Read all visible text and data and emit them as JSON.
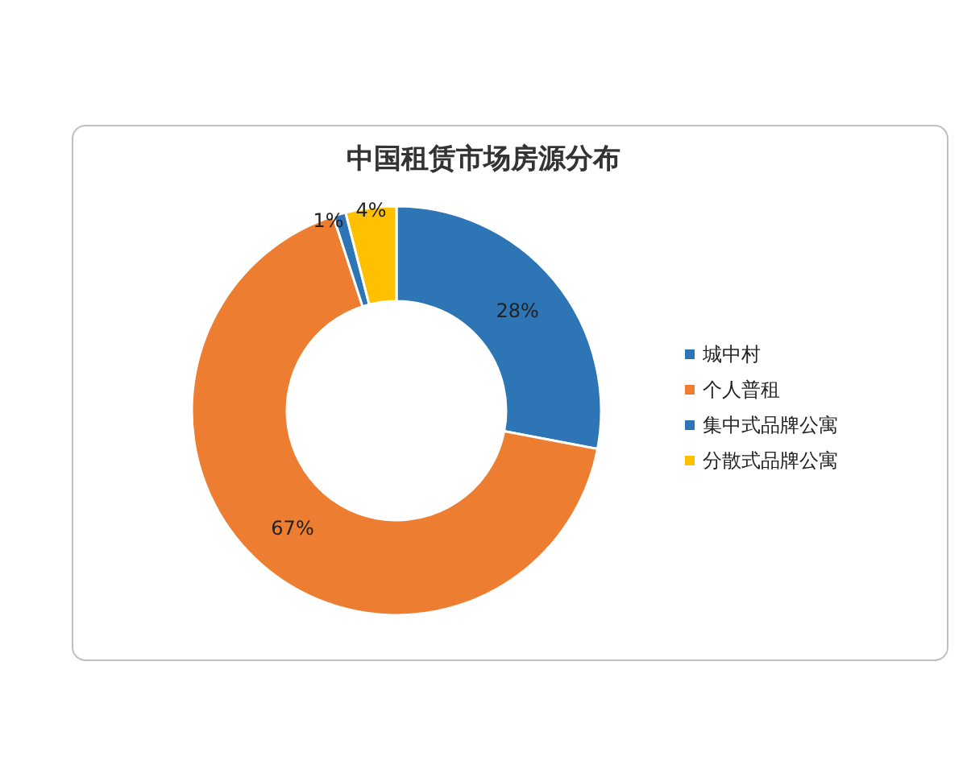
{
  "chart_data": {
    "type": "donut",
    "title": "中国租赁市场房源分布",
    "categories": [
      "城中村",
      "个人普租",
      "集中式品牌公寓",
      "分散式品牌公寓"
    ],
    "values": [
      28,
      67,
      1,
      4
    ],
    "value_labels": [
      "28%",
      "67%",
      "1%",
      "4%"
    ],
    "colors": [
      "#2e75b6",
      "#ed7d31",
      "#2e75b6",
      "#ffc000"
    ],
    "legend": "right"
  }
}
